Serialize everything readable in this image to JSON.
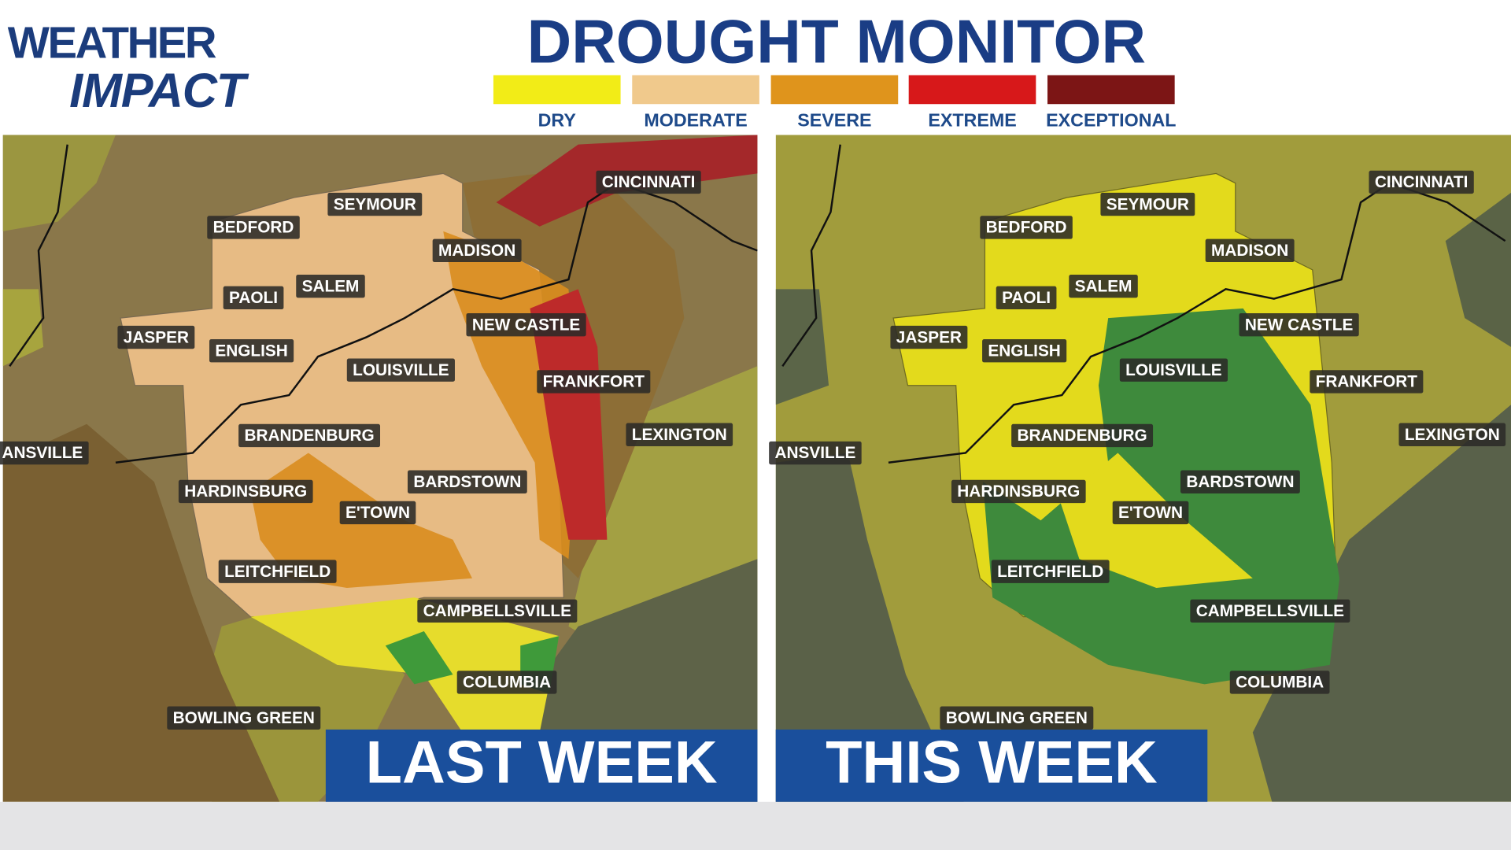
{
  "logo": {
    "line1": "WEATHER",
    "line2": "IMPACT"
  },
  "title": "DROUGHT MONITOR",
  "legend": [
    {
      "label": "DRY",
      "color": "#f2ec17"
    },
    {
      "label": "MODERATE",
      "color": "#f0c98c"
    },
    {
      "label": "SEVERE",
      "color": "#df941c"
    },
    {
      "label": "EXTREME",
      "color": "#d7181a"
    },
    {
      "label": "EXCEPTIONAL",
      "color": "#7c1515"
    }
  ],
  "maps": [
    {
      "title": "LAST WEEK",
      "cities": [
        "CINCINNATI",
        "SEYMOUR",
        "BEDFORD",
        "MADISON",
        "SALEM",
        "PAOLI",
        "NEW CASTLE",
        "JASPER",
        "ENGLISH",
        "LOUISVILLE",
        "FRANKFORT",
        "ANSVILLE",
        "BRANDENBURG",
        "LEXINGTON",
        "BARDSTOWN",
        "HARDINSBURG",
        "E'TOWN",
        "LEITCHFIELD",
        "CAMPBELLSVILLE",
        "COLUMBIA",
        "BOWLING GREEN"
      ]
    },
    {
      "title": "THIS WEEK",
      "cities": [
        "CINCINNATI",
        "SEYMOUR",
        "BEDFORD",
        "MADISON",
        "SALEM",
        "PAOLI",
        "NEW CASTLE",
        "JASPER",
        "ENGLISH",
        "LOUISVILLE",
        "FRANKFORT",
        "ANSVILLE",
        "BRANDENBURG",
        "LEXINGTON",
        "BARDSTOWN",
        "HARDINSBURG",
        "E'TOWN",
        "LEITCHFIELD",
        "CAMPBELLSVILLE",
        "COLUMBIA",
        "BOWLING GREEN"
      ]
    }
  ]
}
